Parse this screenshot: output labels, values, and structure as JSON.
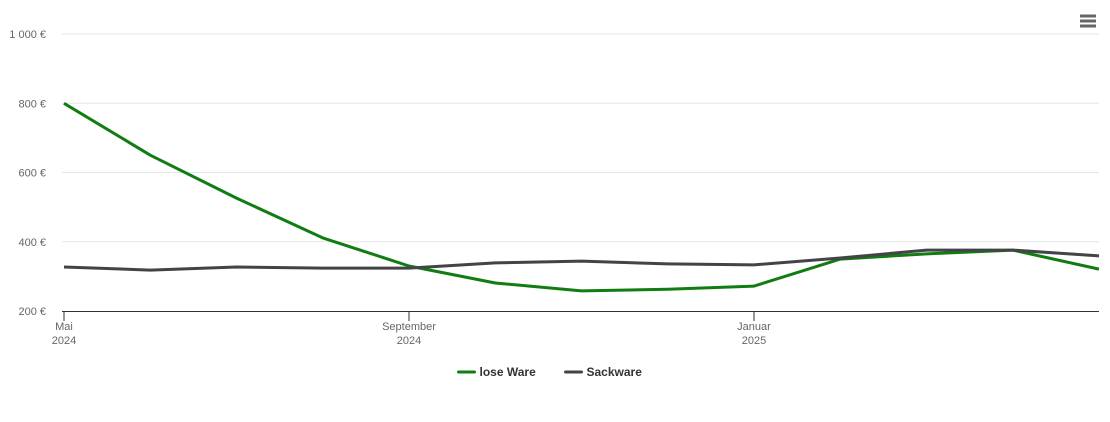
{
  "chart_data": {
    "type": "line",
    "x": [
      "2024-05",
      "2024-06",
      "2024-07",
      "2024-08",
      "2024-09",
      "2024-10",
      "2024-11",
      "2024-12",
      "2025-01",
      "2025-02",
      "2025-03",
      "2025-04",
      "2025-05"
    ],
    "series": [
      {
        "name": "lose Ware",
        "color": "#117c11",
        "values": [
          800,
          650,
          526,
          411,
          330,
          281,
          258,
          263,
          272,
          350,
          365,
          376,
          321
        ]
      },
      {
        "name": "Sackware",
        "color": "#434348",
        "values": [
          327,
          318,
          327,
          324,
          324,
          339,
          344,
          336,
          333,
          353,
          376,
          376,
          359
        ]
      }
    ],
    "xlim": [
      "2024-05",
      "2025-05"
    ],
    "xticks": [
      {
        "value": "2024-05",
        "label": [
          "Mai",
          "2024"
        ]
      },
      {
        "value": "2024-09",
        "label": [
          "September",
          "2024"
        ]
      },
      {
        "value": "2025-01",
        "label": [
          "Januar",
          "2025"
        ]
      }
    ],
    "ylim": [
      200,
      1000
    ],
    "yticks": [
      {
        "value": 200,
        "label": "200 €"
      },
      {
        "value": 400,
        "label": "400 €"
      },
      {
        "value": 600,
        "label": "600 €"
      },
      {
        "value": 800,
        "label": "800 €"
      },
      {
        "value": 1000,
        "label": "1 000 €"
      }
    ],
    "grid": true,
    "legend": "bottom"
  }
}
